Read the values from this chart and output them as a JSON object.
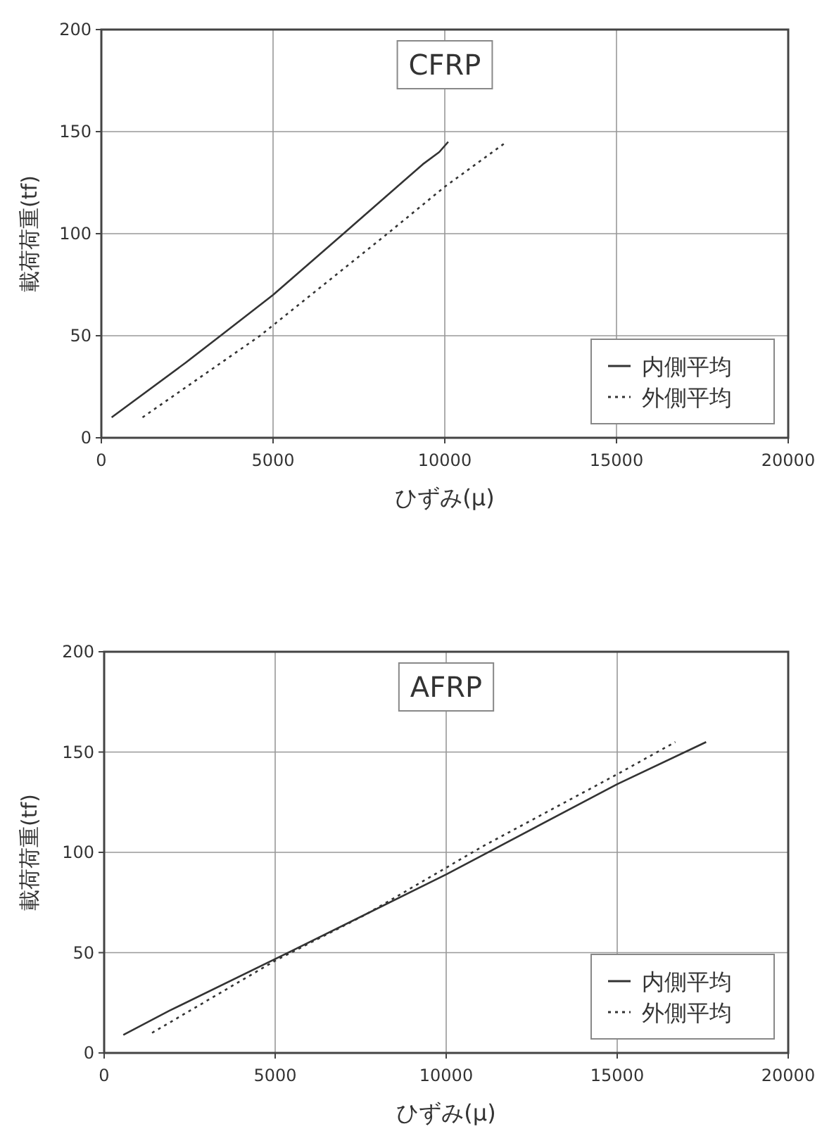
{
  "chart_data": [
    {
      "type": "line",
      "title": "CFRP",
      "xlabel": "ひずみ(μ)",
      "ylabel": "載荷荷重(tf)",
      "xlim": [
        0,
        20000
      ],
      "ylim": [
        0,
        200
      ],
      "xticks": [
        0,
        5000,
        10000,
        15000,
        20000
      ],
      "yticks": [
        0,
        50,
        100,
        150,
        200
      ],
      "grid": true,
      "legend": "bottom right",
      "series": [
        {
          "name": "内側平均",
          "color": "#333333",
          "line_style": "solid",
          "x": [
            300,
            2470,
            3470,
            5000,
            7050,
            9360,
            9840,
            10100
          ],
          "values": [
            10,
            37,
            50,
            70,
            100,
            134,
            140,
            145
          ]
        },
        {
          "name": "外側平均",
          "color": "#333333",
          "line_style": "dotted",
          "x": [
            1200,
            4620,
            8330,
            10000,
            11800
          ],
          "values": [
            10,
            50,
            100,
            123,
            145
          ]
        }
      ]
    },
    {
      "type": "line",
      "title": "AFRP",
      "xlabel": "ひずみ(μ)",
      "ylabel": "載荷荷重(tf)",
      "xlim": [
        0,
        20000
      ],
      "ylim": [
        0,
        200
      ],
      "xticks": [
        0,
        5000,
        10000,
        15000,
        20000
      ],
      "yticks": [
        0,
        50,
        100,
        150,
        200
      ],
      "grid": true,
      "legend": "bottom right",
      "series": [
        {
          "name": "内側平均",
          "color": "#333333",
          "line_style": "solid",
          "x": [
            560,
            1900,
            5500,
            10000,
            15000,
            17600
          ],
          "values": [
            9,
            21,
            51,
            89,
            134,
            155
          ]
        },
        {
          "name": "外側平均",
          "color": "#333333",
          "line_style": "dotted",
          "x": [
            1400,
            5000,
            7650,
            11070,
            14900,
            16700
          ],
          "values": [
            10,
            46,
            69,
            103,
            138,
            155
          ]
        }
      ]
    }
  ]
}
